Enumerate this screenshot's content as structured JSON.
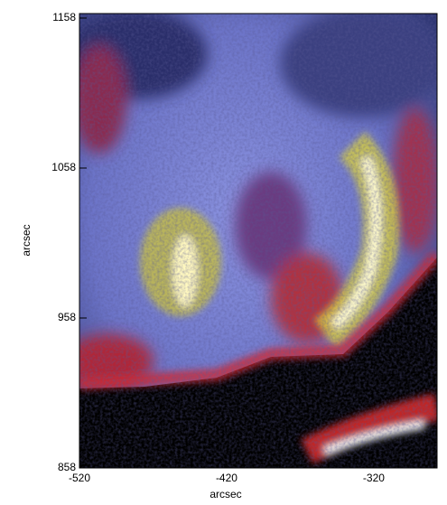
{
  "chart_data": {
    "type": "image",
    "x_label": "arcsec",
    "y_label": "arcsec",
    "xlim": [
      -520,
      -277
    ],
    "ylim": [
      858,
      1161
    ],
    "xticks": [
      -520,
      -420,
      -320
    ],
    "yticks": [
      858,
      958,
      1058,
      1158
    ]
  }
}
